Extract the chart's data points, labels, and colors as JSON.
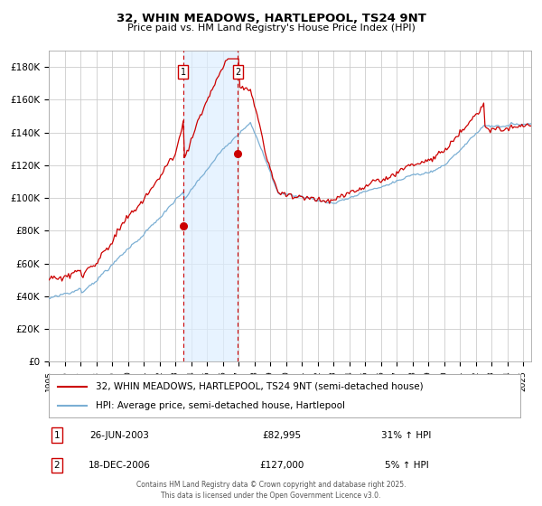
{
  "title": "32, WHIN MEADOWS, HARTLEPOOL, TS24 9NT",
  "subtitle": "Price paid vs. HM Land Registry's House Price Index (HPI)",
  "xlim": [
    1995.0,
    2025.5
  ],
  "ylim": [
    0,
    190000
  ],
  "yticks": [
    0,
    20000,
    40000,
    60000,
    80000,
    100000,
    120000,
    140000,
    160000,
    180000
  ],
  "ytick_labels": [
    "£0",
    "£20K",
    "£40K",
    "£60K",
    "£80K",
    "£100K",
    "£120K",
    "£140K",
    "£160K",
    "£180K"
  ],
  "xtick_years": [
    1995,
    1996,
    1997,
    1998,
    1999,
    2000,
    2001,
    2002,
    2003,
    2004,
    2005,
    2006,
    2007,
    2008,
    2009,
    2010,
    2011,
    2012,
    2013,
    2014,
    2015,
    2016,
    2017,
    2018,
    2019,
    2020,
    2021,
    2022,
    2023,
    2024,
    2025
  ],
  "hpi_color": "#7bafd4",
  "price_color": "#cc0000",
  "marker_color": "#cc0000",
  "shade_color": "#ddeeff",
  "vline_color": "#cc0000",
  "grid_color": "#cccccc",
  "bg_color": "#ffffff",
  "sale1_x": 2003.49,
  "sale1_y": 82995,
  "sale1_label": "1",
  "sale2_x": 2006.96,
  "sale2_y": 127000,
  "sale2_label": "2",
  "legend1_text": "32, WHIN MEADOWS, HARTLEPOOL, TS24 9NT (semi-detached house)",
  "legend2_text": "HPI: Average price, semi-detached house, Hartlepool",
  "table_row1_num": "1",
  "table_row1_date": "26-JUN-2003",
  "table_row1_price": "£82,995",
  "table_row1_hpi": "31% ↑ HPI",
  "table_row2_num": "2",
  "table_row2_date": "18-DEC-2006",
  "table_row2_price": "£127,000",
  "table_row2_hpi": "5% ↑ HPI",
  "footer_line1": "Contains HM Land Registry data © Crown copyright and database right 2025.",
  "footer_line2": "This data is licensed under the Open Government Licence v3.0."
}
